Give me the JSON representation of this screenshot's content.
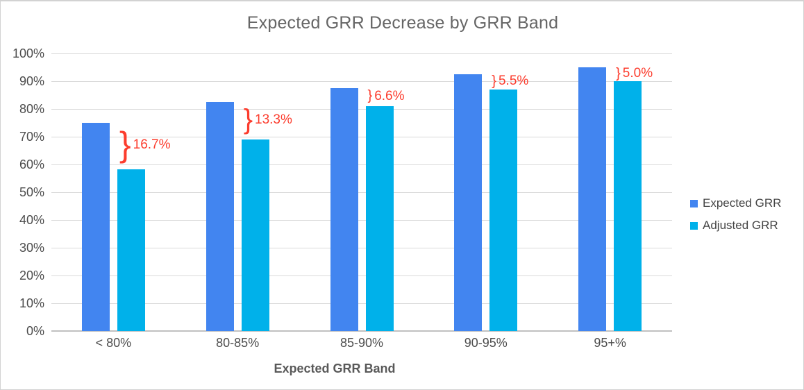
{
  "chart_data": {
    "type": "bar",
    "title": "Expected GRR Decrease by GRR Band",
    "xlabel": "Expected GRR Band",
    "ylabel": "",
    "categories": [
      "< 80%",
      "80-85%",
      "85-90%",
      "90-95%",
      "95+%"
    ],
    "series": [
      {
        "name": "Expected GRR",
        "color": "#4285f0",
        "values": [
          75.0,
          82.4,
          87.6,
          92.5,
          95.0
        ]
      },
      {
        "name": "Adjusted GRR",
        "color": "#00b1ea",
        "values": [
          58.3,
          69.1,
          81.0,
          87.0,
          90.0
        ]
      }
    ],
    "decrease_annotations": [
      {
        "category": "< 80%",
        "label": "16.7%"
      },
      {
        "category": "80-85%",
        "label": "13.3%"
      },
      {
        "category": "85-90%",
        "label": "6.6%"
      },
      {
        "category": "90-95%",
        "label": "5.5%"
      },
      {
        "category": "95+%",
        "label": "5.0%"
      }
    ],
    "annotation_color": "#fc3c2d",
    "y_ticks": [
      "0%",
      "10%",
      "20%",
      "30%",
      "40%",
      "50%",
      "60%",
      "70%",
      "80%",
      "90%",
      "100%"
    ],
    "ylim": [
      0,
      100
    ],
    "grid": true,
    "legend_position": "right"
  },
  "colors": {
    "title_text": "#666666",
    "axis_text": "#4d4d4d",
    "axis_title_text": "#595959",
    "gridline": "#d9d9d9",
    "baseline": "#c0c0c0",
    "legend_text": "#444444",
    "window_border": "#d2d2d2",
    "background": "#ffffff"
  }
}
